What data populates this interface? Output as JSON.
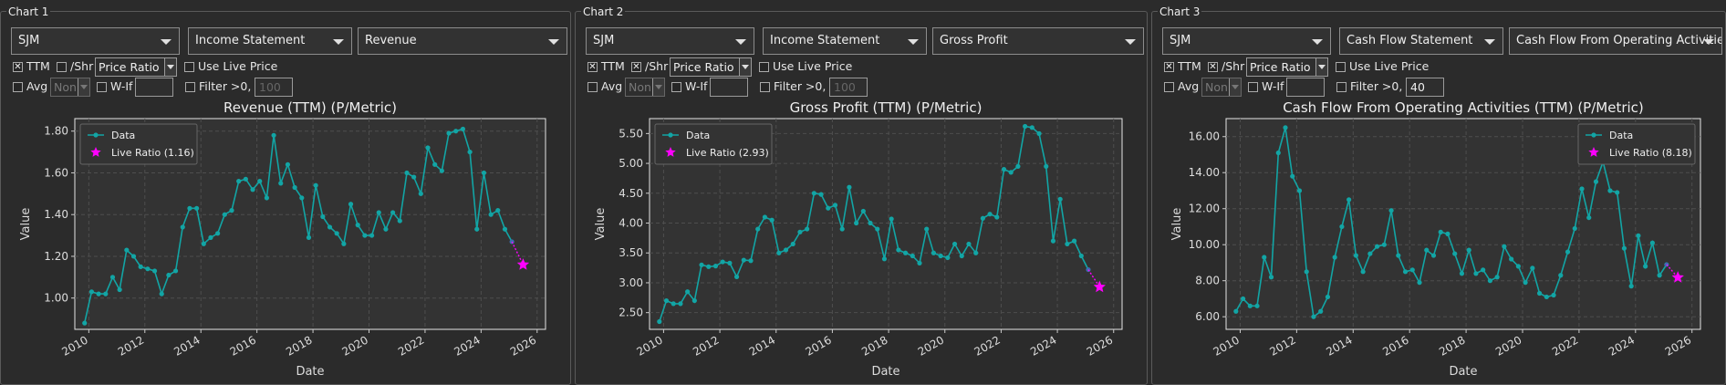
{
  "charts": [
    {
      "panel_title": "Chart 1",
      "ticker": "SJM",
      "statement": "Income Statement",
      "metric": "Revenue",
      "ttm_label": "TTM",
      "ttm_checked": true,
      "shr_label": "/Shr",
      "shr_checked": false,
      "mode": "Price Ratio",
      "live_price_label": "Use Live Price",
      "live_price_checked": false,
      "avg_label": "Avg",
      "avg_value": "Non",
      "wif_label": "W-If",
      "wif_value": "",
      "filter_label": "Filter >0, <",
      "filter_value": "",
      "filter_placeholder": "100",
      "chart_data": {
        "type": "line",
        "title": "Revenue (TTM) (P/Metric)",
        "xlabel": "Date",
        "ylabel": "Value",
        "x_ticks": [
          "2010",
          "2012",
          "2014",
          "2016",
          "2018",
          "2020",
          "2022",
          "2024",
          "2026"
        ],
        "y_ticks": [
          "1.00",
          "1.20",
          "1.40",
          "1.60",
          "1.80"
        ],
        "xlim": [
          2009.5,
          2026.3
        ],
        "ylim": [
          0.85,
          1.86
        ],
        "legend_position": "top-left",
        "series": [
          {
            "name": "Data",
            "color": "#12a5a5",
            "x": [
              2009.85,
              2010.1,
              2010.35,
              2010.6,
              2010.85,
              2011.1,
              2011.35,
              2011.6,
              2011.85,
              2012.1,
              2012.35,
              2012.6,
              2012.85,
              2013.1,
              2013.35,
              2013.6,
              2013.85,
              2014.1,
              2014.35,
              2014.6,
              2014.85,
              2015.1,
              2015.35,
              2015.6,
              2015.85,
              2016.1,
              2016.35,
              2016.6,
              2016.85,
              2017.1,
              2017.35,
              2017.6,
              2017.85,
              2018.1,
              2018.35,
              2018.6,
              2018.85,
              2019.1,
              2019.35,
              2019.6,
              2019.85,
              2020.1,
              2020.35,
              2020.6,
              2020.85,
              2021.1,
              2021.35,
              2021.6,
              2021.85,
              2022.1,
              2022.35,
              2022.6,
              2022.85,
              2023.1,
              2023.35,
              2023.6,
              2023.85,
              2024.1,
              2024.35,
              2024.6,
              2024.85,
              2025.1
            ],
            "y": [
              0.88,
              1.03,
              1.02,
              1.02,
              1.1,
              1.04,
              1.23,
              1.2,
              1.15,
              1.14,
              1.13,
              1.02,
              1.11,
              1.13,
              1.34,
              1.43,
              1.43,
              1.26,
              1.29,
              1.31,
              1.4,
              1.42,
              1.56,
              1.57,
              1.52,
              1.56,
              1.48,
              1.78,
              1.55,
              1.64,
              1.53,
              1.48,
              1.29,
              1.54,
              1.39,
              1.34,
              1.31,
              1.26,
              1.45,
              1.35,
              1.3,
              1.3,
              1.41,
              1.33,
              1.41,
              1.37,
              1.6,
              1.58,
              1.5,
              1.72,
              1.64,
              1.61,
              1.79,
              1.8,
              1.81,
              1.7,
              1.33,
              1.6,
              1.4,
              1.42,
              1.33,
              1.27
            ]
          },
          {
            "name": "Live Ratio (1.16)",
            "color": "#ff00ff",
            "x": [
              2025.5
            ],
            "y": [
              1.16
            ]
          }
        ]
      }
    },
    {
      "panel_title": "Chart 2",
      "ticker": "SJM",
      "statement": "Income Statement",
      "metric": "Gross Profit",
      "ttm_label": "TTM",
      "ttm_checked": true,
      "shr_label": "/Shr",
      "shr_checked": true,
      "mode": "Price Ratio",
      "live_price_label": "Use Live Price",
      "live_price_checked": false,
      "avg_label": "Avg",
      "avg_value": "Non",
      "wif_label": "W-If",
      "wif_value": "",
      "filter_label": "Filter >0, <",
      "filter_value": "",
      "filter_placeholder": "100",
      "chart_data": {
        "type": "line",
        "title": "Gross Profit (TTM) (P/Metric)",
        "xlabel": "Date",
        "ylabel": "Value",
        "x_ticks": [
          "2010",
          "2012",
          "2014",
          "2016",
          "2018",
          "2020",
          "2022",
          "2024",
          "2026"
        ],
        "y_ticks": [
          "2.50",
          "3.00",
          "3.50",
          "4.00",
          "4.50",
          "5.00",
          "5.50"
        ],
        "xlim": [
          2009.5,
          2026.3
        ],
        "ylim": [
          2.22,
          5.75
        ],
        "legend_position": "top-left",
        "series": [
          {
            "name": "Data",
            "color": "#12a5a5",
            "x": [
              2009.85,
              2010.1,
              2010.35,
              2010.6,
              2010.85,
              2011.1,
              2011.35,
              2011.6,
              2011.85,
              2012.1,
              2012.35,
              2012.6,
              2012.85,
              2013.1,
              2013.35,
              2013.6,
              2013.85,
              2014.1,
              2014.35,
              2014.6,
              2014.85,
              2015.1,
              2015.35,
              2015.6,
              2015.85,
              2016.1,
              2016.35,
              2016.6,
              2016.85,
              2017.1,
              2017.35,
              2017.6,
              2017.85,
              2018.1,
              2018.35,
              2018.6,
              2018.85,
              2019.1,
              2019.35,
              2019.6,
              2019.85,
              2020.1,
              2020.35,
              2020.6,
              2020.85,
              2021.1,
              2021.35,
              2021.6,
              2021.85,
              2022.1,
              2022.35,
              2022.6,
              2022.85,
              2023.1,
              2023.35,
              2023.6,
              2023.85,
              2024.1,
              2024.35,
              2024.6,
              2024.85,
              2025.1
            ],
            "y": [
              2.35,
              2.7,
              2.65,
              2.65,
              2.85,
              2.7,
              3.3,
              3.27,
              3.28,
              3.35,
              3.33,
              3.1,
              3.38,
              3.37,
              3.9,
              4.1,
              4.05,
              3.5,
              3.55,
              3.65,
              3.85,
              3.9,
              4.5,
              4.48,
              4.25,
              4.3,
              3.9,
              4.6,
              4.0,
              4.2,
              4.0,
              3.9,
              3.4,
              4.07,
              3.55,
              3.5,
              3.45,
              3.33,
              3.9,
              3.5,
              3.45,
              3.42,
              3.65,
              3.45,
              3.65,
              3.5,
              4.08,
              4.15,
              4.1,
              4.9,
              4.85,
              4.95,
              5.62,
              5.6,
              5.5,
              4.95,
              3.7,
              4.4,
              3.65,
              3.7,
              3.45,
              3.22
            ]
          },
          {
            "name": "Live Ratio (2.93)",
            "color": "#ff00ff",
            "x": [
              2025.5
            ],
            "y": [
              2.93
            ]
          }
        ]
      }
    },
    {
      "panel_title": "Chart 3",
      "ticker": "SJM",
      "statement": "Cash Flow Statement",
      "metric": "Cash Flow From Operating Activities",
      "ttm_label": "TTM",
      "ttm_checked": true,
      "shr_label": "/Shr",
      "shr_checked": true,
      "mode": "Price Ratio",
      "live_price_label": "Use Live Price",
      "live_price_checked": false,
      "avg_label": "Avg",
      "avg_value": "Non",
      "wif_label": "W-If",
      "wif_value": "",
      "filter_label": "Filter >0, <",
      "filter_value": "40",
      "filter_placeholder": "",
      "chart_data": {
        "type": "line",
        "title": "Cash Flow From Operating Activities (TTM) (P/Metric)",
        "xlabel": "Date",
        "ylabel": "Value",
        "x_ticks": [
          "2010",
          "2012",
          "2014",
          "2016",
          "2018",
          "2020",
          "2022",
          "2024",
          "2026"
        ],
        "y_ticks": [
          "6.00",
          "8.00",
          "10.00",
          "12.00",
          "14.00",
          "16.00"
        ],
        "xlim": [
          2009.5,
          2026.3
        ],
        "ylim": [
          5.3,
          17.0
        ],
        "legend_position": "top-right",
        "series": [
          {
            "name": "Data",
            "color": "#12a5a5",
            "x": [
              2009.85,
              2010.1,
              2010.35,
              2010.6,
              2010.85,
              2011.1,
              2011.35,
              2011.6,
              2011.85,
              2012.1,
              2012.35,
              2012.6,
              2012.85,
              2013.1,
              2013.35,
              2013.6,
              2013.85,
              2014.1,
              2014.35,
              2014.6,
              2014.85,
              2015.1,
              2015.35,
              2015.6,
              2015.85,
              2016.1,
              2016.35,
              2016.6,
              2016.85,
              2017.1,
              2017.35,
              2017.6,
              2017.85,
              2018.1,
              2018.35,
              2018.6,
              2018.85,
              2019.1,
              2019.35,
              2019.6,
              2019.85,
              2020.1,
              2020.35,
              2020.6,
              2020.85,
              2021.1,
              2021.35,
              2021.6,
              2021.85,
              2022.1,
              2022.35,
              2022.6,
              2022.85,
              2023.1,
              2023.35,
              2023.6,
              2023.85,
              2024.1,
              2024.35,
              2024.6,
              2024.85,
              2025.1
            ],
            "y": [
              6.3,
              7.0,
              6.6,
              6.6,
              9.3,
              8.2,
              15.1,
              16.5,
              13.8,
              13.0,
              8.5,
              6.0,
              6.3,
              7.1,
              9.3,
              11.0,
              12.5,
              9.4,
              8.5,
              9.5,
              9.9,
              10.0,
              11.9,
              9.4,
              8.5,
              8.6,
              7.9,
              9.7,
              9.4,
              10.7,
              10.6,
              9.5,
              8.4,
              9.7,
              8.4,
              8.6,
              8.0,
              8.2,
              9.9,
              9.2,
              8.8,
              7.9,
              8.7,
              7.3,
              7.1,
              7.2,
              8.3,
              9.6,
              10.9,
              13.1,
              11.5,
              13.5,
              14.6,
              13.0,
              12.9,
              9.8,
              7.7,
              10.5,
              8.8,
              10.1,
              8.3,
              8.9
            ]
          },
          {
            "name": "Live Ratio (8.18)",
            "color": "#ff00ff",
            "x": [
              2025.5
            ],
            "y": [
              8.18
            ]
          }
        ]
      }
    }
  ]
}
